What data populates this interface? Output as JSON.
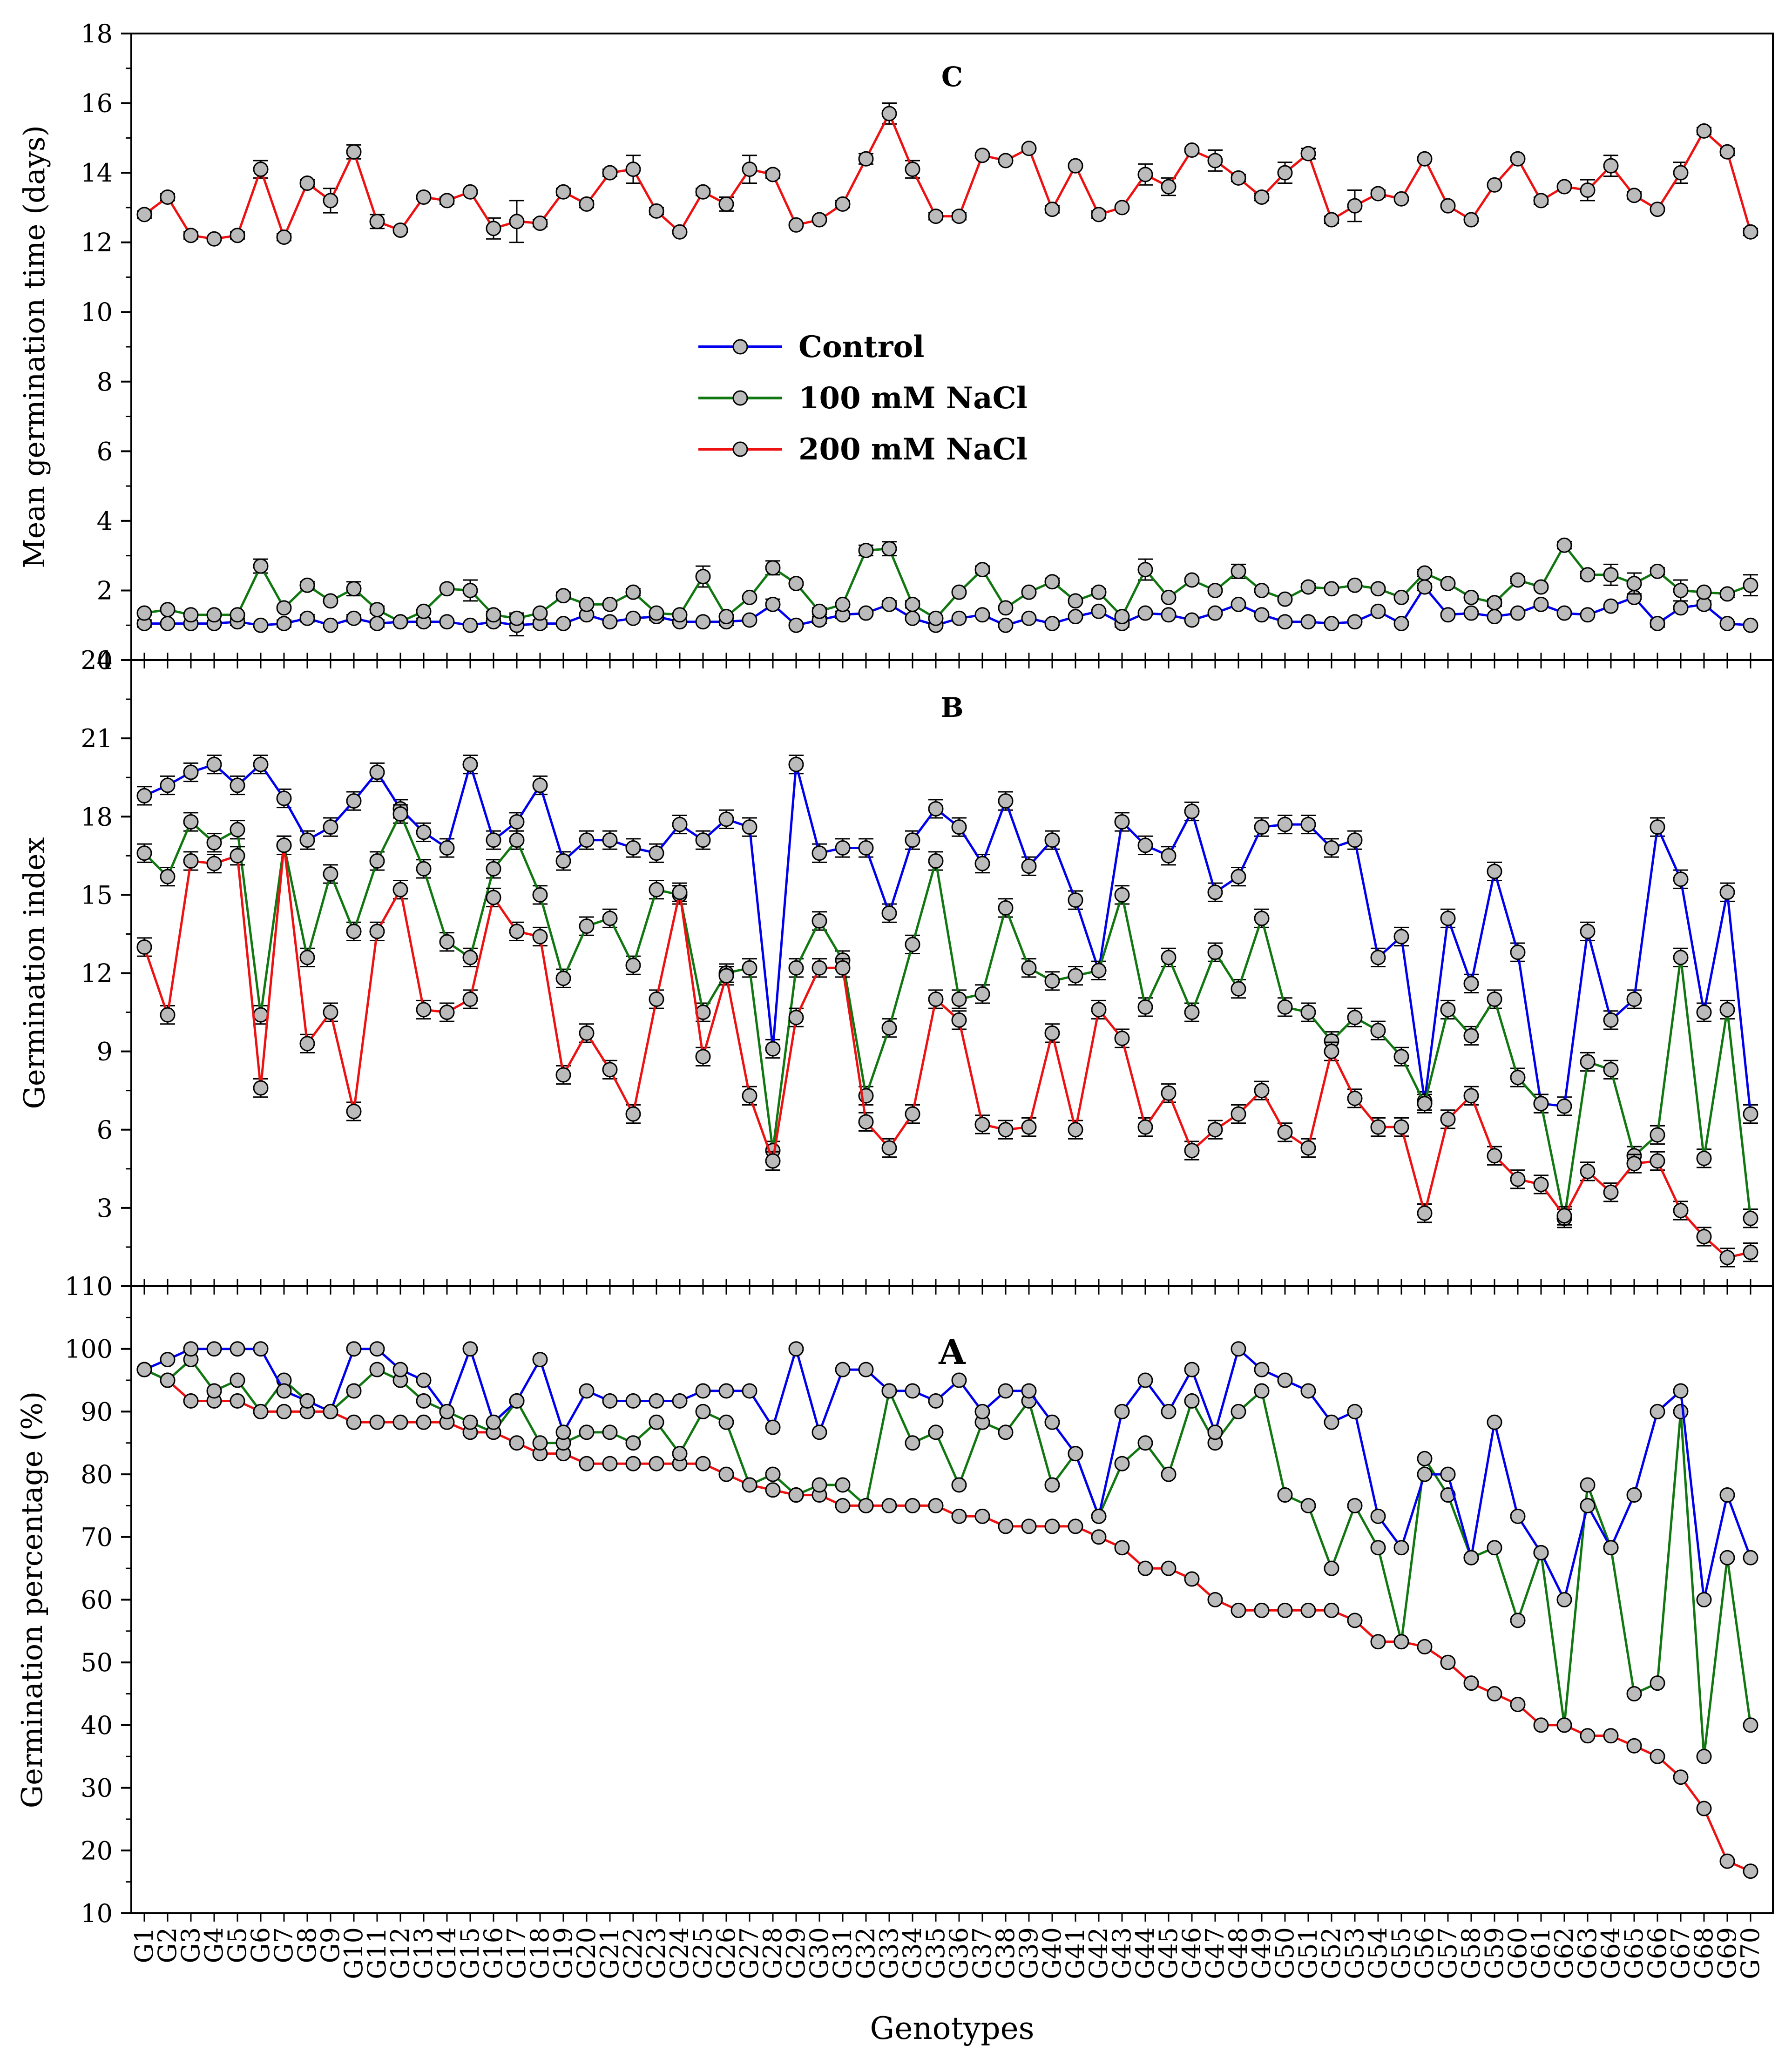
{
  "chart_data": [
    {
      "type": "line",
      "panel_label": "C",
      "ylabel": "Mean germination time (days)",
      "ylim": [
        0,
        18
      ],
      "yticks": [
        "0",
        "2",
        "4",
        "6",
        "8",
        "10",
        "12",
        "14",
        "16",
        "18"
      ],
      "legend_position": "center",
      "series": [
        {
          "name": "Control",
          "color": "#0000ee",
          "values": [
            1.05,
            1.05,
            1.05,
            1.05,
            1.1,
            1.0,
            1.05,
            1.2,
            1.0,
            1.2,
            1.05,
            1.1,
            1.1,
            1.1,
            1.0,
            1.1,
            1.0,
            1.05,
            1.05,
            1.3,
            1.1,
            1.2,
            1.25,
            1.1,
            1.1,
            1.1,
            1.15,
            1.6,
            1.0,
            1.15,
            1.3,
            1.35,
            1.6,
            1.2,
            1.0,
            1.2,
            1.3,
            1.0,
            1.2,
            1.05,
            1.25,
            1.4,
            1.05,
            1.35,
            1.3,
            1.15,
            1.35,
            1.6,
            1.3,
            1.1,
            1.1,
            1.05,
            1.1,
            1.4,
            1.05,
            2.1,
            1.3,
            1.35,
            1.25,
            1.35,
            1.6,
            1.35,
            1.3,
            1.55,
            1.8,
            1.05,
            1.5,
            1.6,
            1.05,
            1.0
          ]
        },
        {
          "name": "100 mM NaCl",
          "color": "#117711",
          "values": [
            1.35,
            1.45,
            1.3,
            1.3,
            1.3,
            2.7,
            1.5,
            2.15,
            1.7,
            2.05,
            1.45,
            1.1,
            1.4,
            2.05,
            2.0,
            1.3,
            1.2,
            1.35,
            1.85,
            1.6,
            1.6,
            1.95,
            1.35,
            1.3,
            2.4,
            1.25,
            1.8,
            2.65,
            2.2,
            1.4,
            1.6,
            3.15,
            3.2,
            1.6,
            1.2,
            1.95,
            2.6,
            1.5,
            1.95,
            2.25,
            1.7,
            1.95,
            1.25,
            2.6,
            1.8,
            2.3,
            2.0,
            2.55,
            2.0,
            1.75,
            2.1,
            2.05,
            2.15,
            2.05,
            1.8,
            2.5,
            2.2,
            1.8,
            1.65,
            2.3,
            2.1,
            3.3,
            2.45,
            2.45,
            2.2,
            2.55,
            2.0,
            1.95,
            1.9,
            2.15
          ]
        },
        {
          "name": "200 mM NaCl",
          "color": "#ee1111",
          "values": [
            12.8,
            13.3,
            12.2,
            12.1,
            12.2,
            14.1,
            12.15,
            13.7,
            13.2,
            14.6,
            12.6,
            12.35,
            13.3,
            13.2,
            13.45,
            12.4,
            12.6,
            12.55,
            13.45,
            13.1,
            14.0,
            14.1,
            12.9,
            12.3,
            13.45,
            13.1,
            14.1,
            13.95,
            12.5,
            12.65,
            13.1,
            14.4,
            15.7,
            14.1,
            12.75,
            12.75,
            14.5,
            14.35,
            14.7,
            12.95,
            14.2,
            12.8,
            13.0,
            13.95,
            13.6,
            14.65,
            14.35,
            13.85,
            13.3,
            14.0,
            14.55,
            12.65,
            13.05,
            13.4,
            13.25,
            14.4,
            13.05,
            12.65,
            13.65,
            14.4,
            13.2,
            13.6,
            13.5,
            14.2,
            13.35,
            12.95,
            14.0,
            15.2,
            14.6,
            12.3
          ]
        }
      ],
      "error_bars": {
        "Control": [
          0.1,
          0.05,
          0.05,
          0.05,
          0.1,
          0.05,
          0.1,
          0.1,
          0.05,
          0.1,
          0.1,
          0.05,
          0.1,
          0.05,
          0.05,
          0.1,
          0.3,
          0.1,
          0.05,
          0.05,
          0.05,
          0.05,
          0.1,
          0.05,
          0.05,
          0.1,
          0.05,
          0.15,
          0.05,
          0.1,
          0.1,
          0.05,
          0.1,
          0.05,
          0.05,
          0.05,
          0.05,
          0.05,
          0.05,
          0.05,
          0.05,
          0.05,
          0.1,
          0.05,
          0.05,
          0.05,
          0.05,
          0.05,
          0.05,
          0.05,
          0.05,
          0.05,
          0.05,
          0.05,
          0.05,
          0.1,
          0.05,
          0.05,
          0.05,
          0.05,
          0.05,
          0.05,
          0.05,
          0.05,
          0.05,
          0.1,
          0.05,
          0.1,
          0.05,
          0.05
        ],
        "100 mM NaCl": [
          0.05,
          0.05,
          0.05,
          0.05,
          0.05,
          0.2,
          0.05,
          0.1,
          0.05,
          0.2,
          0.1,
          0.05,
          0.05,
          0.05,
          0.3,
          0.1,
          0.15,
          0.05,
          0.1,
          0.05,
          0.05,
          0.1,
          0.05,
          0.05,
          0.3,
          0.05,
          0.05,
          0.2,
          0.05,
          0.1,
          0.05,
          0.15,
          0.2,
          0.1,
          0.05,
          0.05,
          0.1,
          0.05,
          0.05,
          0.1,
          0.05,
          0.1,
          0.05,
          0.3,
          0.05,
          0.05,
          0.05,
          0.2,
          0.05,
          0.05,
          0.1,
          0.05,
          0.05,
          0.05,
          0.05,
          0.1,
          0.05,
          0.05,
          0.1,
          0.1,
          0.05,
          0.1,
          0.1,
          0.3,
          0.3,
          0.1,
          0.3,
          0.05,
          0.1,
          0.3
        ]
      },
      "error_bars_200": [
        0.1,
        0.1,
        0.1,
        0.05,
        0.1,
        0.25,
        0.1,
        0.1,
        0.35,
        0.2,
        0.2,
        0.05,
        0.05,
        0.1,
        0.05,
        0.3,
        0.6,
        0.1,
        0.1,
        0.1,
        0.1,
        0.4,
        0.1,
        0.05,
        0.1,
        0.2,
        0.4,
        0.1,
        0.05,
        0.05,
        0.1,
        0.15,
        0.3,
        0.25,
        0.1,
        0.1,
        0.05,
        0.05,
        0.05,
        0.1,
        0.05,
        0.1,
        0.05,
        0.3,
        0.25,
        0.05,
        0.3,
        0.1,
        0.1,
        0.3,
        0.15,
        0.1,
        0.45,
        0.1,
        0.05,
        0.05,
        0.05,
        0.05,
        0.05,
        0.05,
        0.1,
        0.05,
        0.3,
        0.3,
        0.1,
        0.05,
        0.3,
        0.1,
        0.1,
        0.1
      ]
    },
    {
      "type": "line",
      "panel_label": "B",
      "ylabel": "Germination index",
      "ylim": [
        0,
        24
      ],
      "yticks": [
        "0",
        "3",
        "6",
        "9",
        "12",
        "15",
        "18",
        "21",
        "24"
      ],
      "series": [
        {
          "name": "Control",
          "color": "#0000ee",
          "values": [
            18.8,
            19.2,
            19.7,
            20.0,
            19.2,
            20.0,
            18.7,
            17.1,
            17.6,
            18.6,
            19.7,
            18.3,
            17.4,
            16.8,
            20.0,
            17.1,
            17.8,
            19.2,
            16.3,
            17.1,
            17.1,
            16.8,
            16.6,
            17.7,
            17.1,
            17.9,
            17.6,
            9.1,
            20.0,
            16.6,
            16.8,
            16.8,
            14.3,
            17.1,
            18.3,
            17.6,
            16.2,
            18.6,
            16.1,
            17.1,
            14.8,
            12.1,
            17.8,
            16.9,
            16.5,
            18.2,
            15.1,
            15.7,
            17.6,
            17.7,
            17.7,
            16.8,
            17.1,
            12.6,
            13.4,
            7.1,
            14.1,
            11.6,
            15.9,
            12.8,
            7.0,
            6.9,
            13.6,
            10.2,
            11.0,
            17.6,
            15.6,
            10.5,
            15.1,
            6.6
          ]
        },
        {
          "name": "100 mM NaCl",
          "color": "#117711",
          "values": [
            16.6,
            15.7,
            17.8,
            17.0,
            17.5,
            10.4,
            16.9,
            12.6,
            15.8,
            13.6,
            16.3,
            18.1,
            16.0,
            13.2,
            12.6,
            16.0,
            17.1,
            15.0,
            11.8,
            13.8,
            14.1,
            12.3,
            15.2,
            15.0,
            10.5,
            12.0,
            12.2,
            5.2,
            12.2,
            14.0,
            12.5,
            7.3,
            9.9,
            13.1,
            16.3,
            11.0,
            11.2,
            14.5,
            12.2,
            11.7,
            11.9,
            12.1,
            15.0,
            10.7,
            12.6,
            10.5,
            12.8,
            11.4,
            14.1,
            10.7,
            10.5,
            9.4,
            10.3,
            9.8,
            8.8,
            7.0,
            10.6,
            9.6,
            11.0,
            8.0,
            7.0,
            2.6,
            8.6,
            8.3,
            5.0,
            5.8,
            12.6,
            4.9,
            10.6,
            2.6
          ]
        },
        {
          "name": "200 mM NaCl",
          "color": "#ee1111",
          "values": [
            13.0,
            10.4,
            16.3,
            16.2,
            16.5,
            7.6,
            16.9,
            9.3,
            10.5,
            6.7,
            13.6,
            15.2,
            10.6,
            10.5,
            11.0,
            14.9,
            13.6,
            13.4,
            8.1,
            9.7,
            8.3,
            6.6,
            11.0,
            15.1,
            8.8,
            11.9,
            7.3,
            4.8,
            10.3,
            12.2,
            12.2,
            6.3,
            5.3,
            6.6,
            11.0,
            10.2,
            6.2,
            6.0,
            6.1,
            9.7,
            6.0,
            10.6,
            9.5,
            6.1,
            7.4,
            5.2,
            6.0,
            6.6,
            7.5,
            5.9,
            5.3,
            9.0,
            7.2,
            6.1,
            6.1,
            2.8,
            6.4,
            7.3,
            5.0,
            4.1,
            3.9,
            2.7,
            4.4,
            3.6,
            4.7,
            4.8,
            2.9,
            1.9,
            1.1,
            1.3
          ]
        }
      ]
    },
    {
      "type": "line",
      "panel_label": "A",
      "ylabel": "Germination percentage (%)",
      "xlabel": "Genotypes",
      "ylim": [
        10,
        110
      ],
      "yticks": [
        "10",
        "20",
        "30",
        "40",
        "50",
        "60",
        "70",
        "80",
        "90",
        "100",
        "110"
      ],
      "series": [
        {
          "name": "Control",
          "color": "#0000ee",
          "values": [
            96.7,
            98.3,
            100,
            100,
            100,
            100,
            93.3,
            91.7,
            90,
            100,
            100,
            96.7,
            95,
            90,
            100,
            88.3,
            91.7,
            98.3,
            86.7,
            93.3,
            91.7,
            91.7,
            91.7,
            91.7,
            93.3,
            93.3,
            93.3,
            87.5,
            100,
            86.7,
            96.7,
            96.7,
            93.3,
            93.3,
            91.7,
            95,
            90,
            93.3,
            93.3,
            88.3,
            83.3,
            73.3,
            90,
            95,
            90,
            96.7,
            86.7,
            100,
            96.7,
            95,
            93.3,
            88.3,
            90,
            73.3,
            68.3,
            80,
            80,
            66.7,
            88.3,
            73.3,
            67.5,
            60,
            75,
            68.3,
            76.7,
            90,
            93.3,
            60,
            76.7,
            66.7
          ]
        },
        {
          "name": "100 mM NaCl",
          "color": "#117711",
          "values": [
            96.7,
            95,
            98.3,
            93.3,
            95,
            90,
            95,
            91.7,
            90,
            93.3,
            96.7,
            95,
            91.7,
            90,
            88.3,
            86.7,
            91.7,
            85,
            85,
            86.7,
            86.7,
            85,
            88.3,
            83.3,
            90,
            88.3,
            78.3,
            80,
            76.7,
            78.3,
            78.3,
            75,
            93.3,
            85,
            86.7,
            78.3,
            88.3,
            86.7,
            91.7,
            78.3,
            83.3,
            73.3,
            81.7,
            85,
            80,
            91.7,
            85,
            90,
            93.3,
            76.7,
            75,
            65,
            75,
            68.3,
            53.3,
            82.5,
            76.7,
            66.7,
            68.3,
            56.7,
            67.5,
            40,
            78.3,
            68.3,
            45,
            46.7,
            90,
            35,
            66.7,
            40
          ]
        },
        {
          "name": "200 mM NaCl",
          "color": "#ee1111",
          "values": [
            96.7,
            95,
            91.7,
            91.7,
            91.7,
            90,
            90,
            90,
            90,
            88.3,
            88.3,
            88.3,
            88.3,
            88.3,
            86.7,
            86.7,
            85,
            83.3,
            83.3,
            81.7,
            81.7,
            81.7,
            81.7,
            81.7,
            81.7,
            80,
            78.3,
            77.5,
            76.7,
            76.7,
            75,
            75,
            75,
            75,
            75,
            73.3,
            73.3,
            71.7,
            71.7,
            71.7,
            71.7,
            70,
            68.3,
            65,
            65,
            63.3,
            60,
            58.3,
            58.3,
            58.3,
            58.3,
            58.3,
            56.7,
            53.3,
            53.3,
            52.5,
            50,
            46.7,
            45,
            43.3,
            40,
            40,
            38.3,
            38.3,
            36.7,
            35,
            31.7,
            26.7,
            18.3,
            16.7
          ]
        }
      ]
    }
  ],
  "legend": {
    "items": [
      {
        "label": "Control",
        "color": "#0000ee"
      },
      {
        "label": "100 mM NaCl",
        "color": "#117711"
      },
      {
        "label": "200 mM NaCl",
        "color": "#ee1111"
      }
    ]
  },
  "x_axis": {
    "title": "Genotypes",
    "categories": [
      "G1",
      "G2",
      "G3",
      "G4",
      "G5",
      "G6",
      "G7",
      "G8",
      "G9",
      "G10",
      "G11",
      "G12",
      "G13",
      "G14",
      "G15",
      "G16",
      "G17",
      "G18",
      "G19",
      "G20",
      "G21",
      "G22",
      "G23",
      "G24",
      "G25",
      "G26",
      "G27",
      "G28",
      "G29",
      "G30",
      "G31",
      "G32",
      "G33",
      "G34",
      "G35",
      "G36",
      "G37",
      "G38",
      "G39",
      "G40",
      "G41",
      "G42",
      "G43",
      "G44",
      "G45",
      "G46",
      "G47",
      "G48",
      "G49",
      "G50",
      "G51",
      "G52",
      "G53",
      "G54",
      "G55",
      "G56",
      "G57",
      "G58",
      "G59",
      "G60",
      "G61",
      "G62",
      "G63",
      "G64",
      "G65",
      "G66",
      "G67",
      "G68",
      "G69",
      "G70"
    ]
  },
  "marker_color": "#bbbbbb"
}
